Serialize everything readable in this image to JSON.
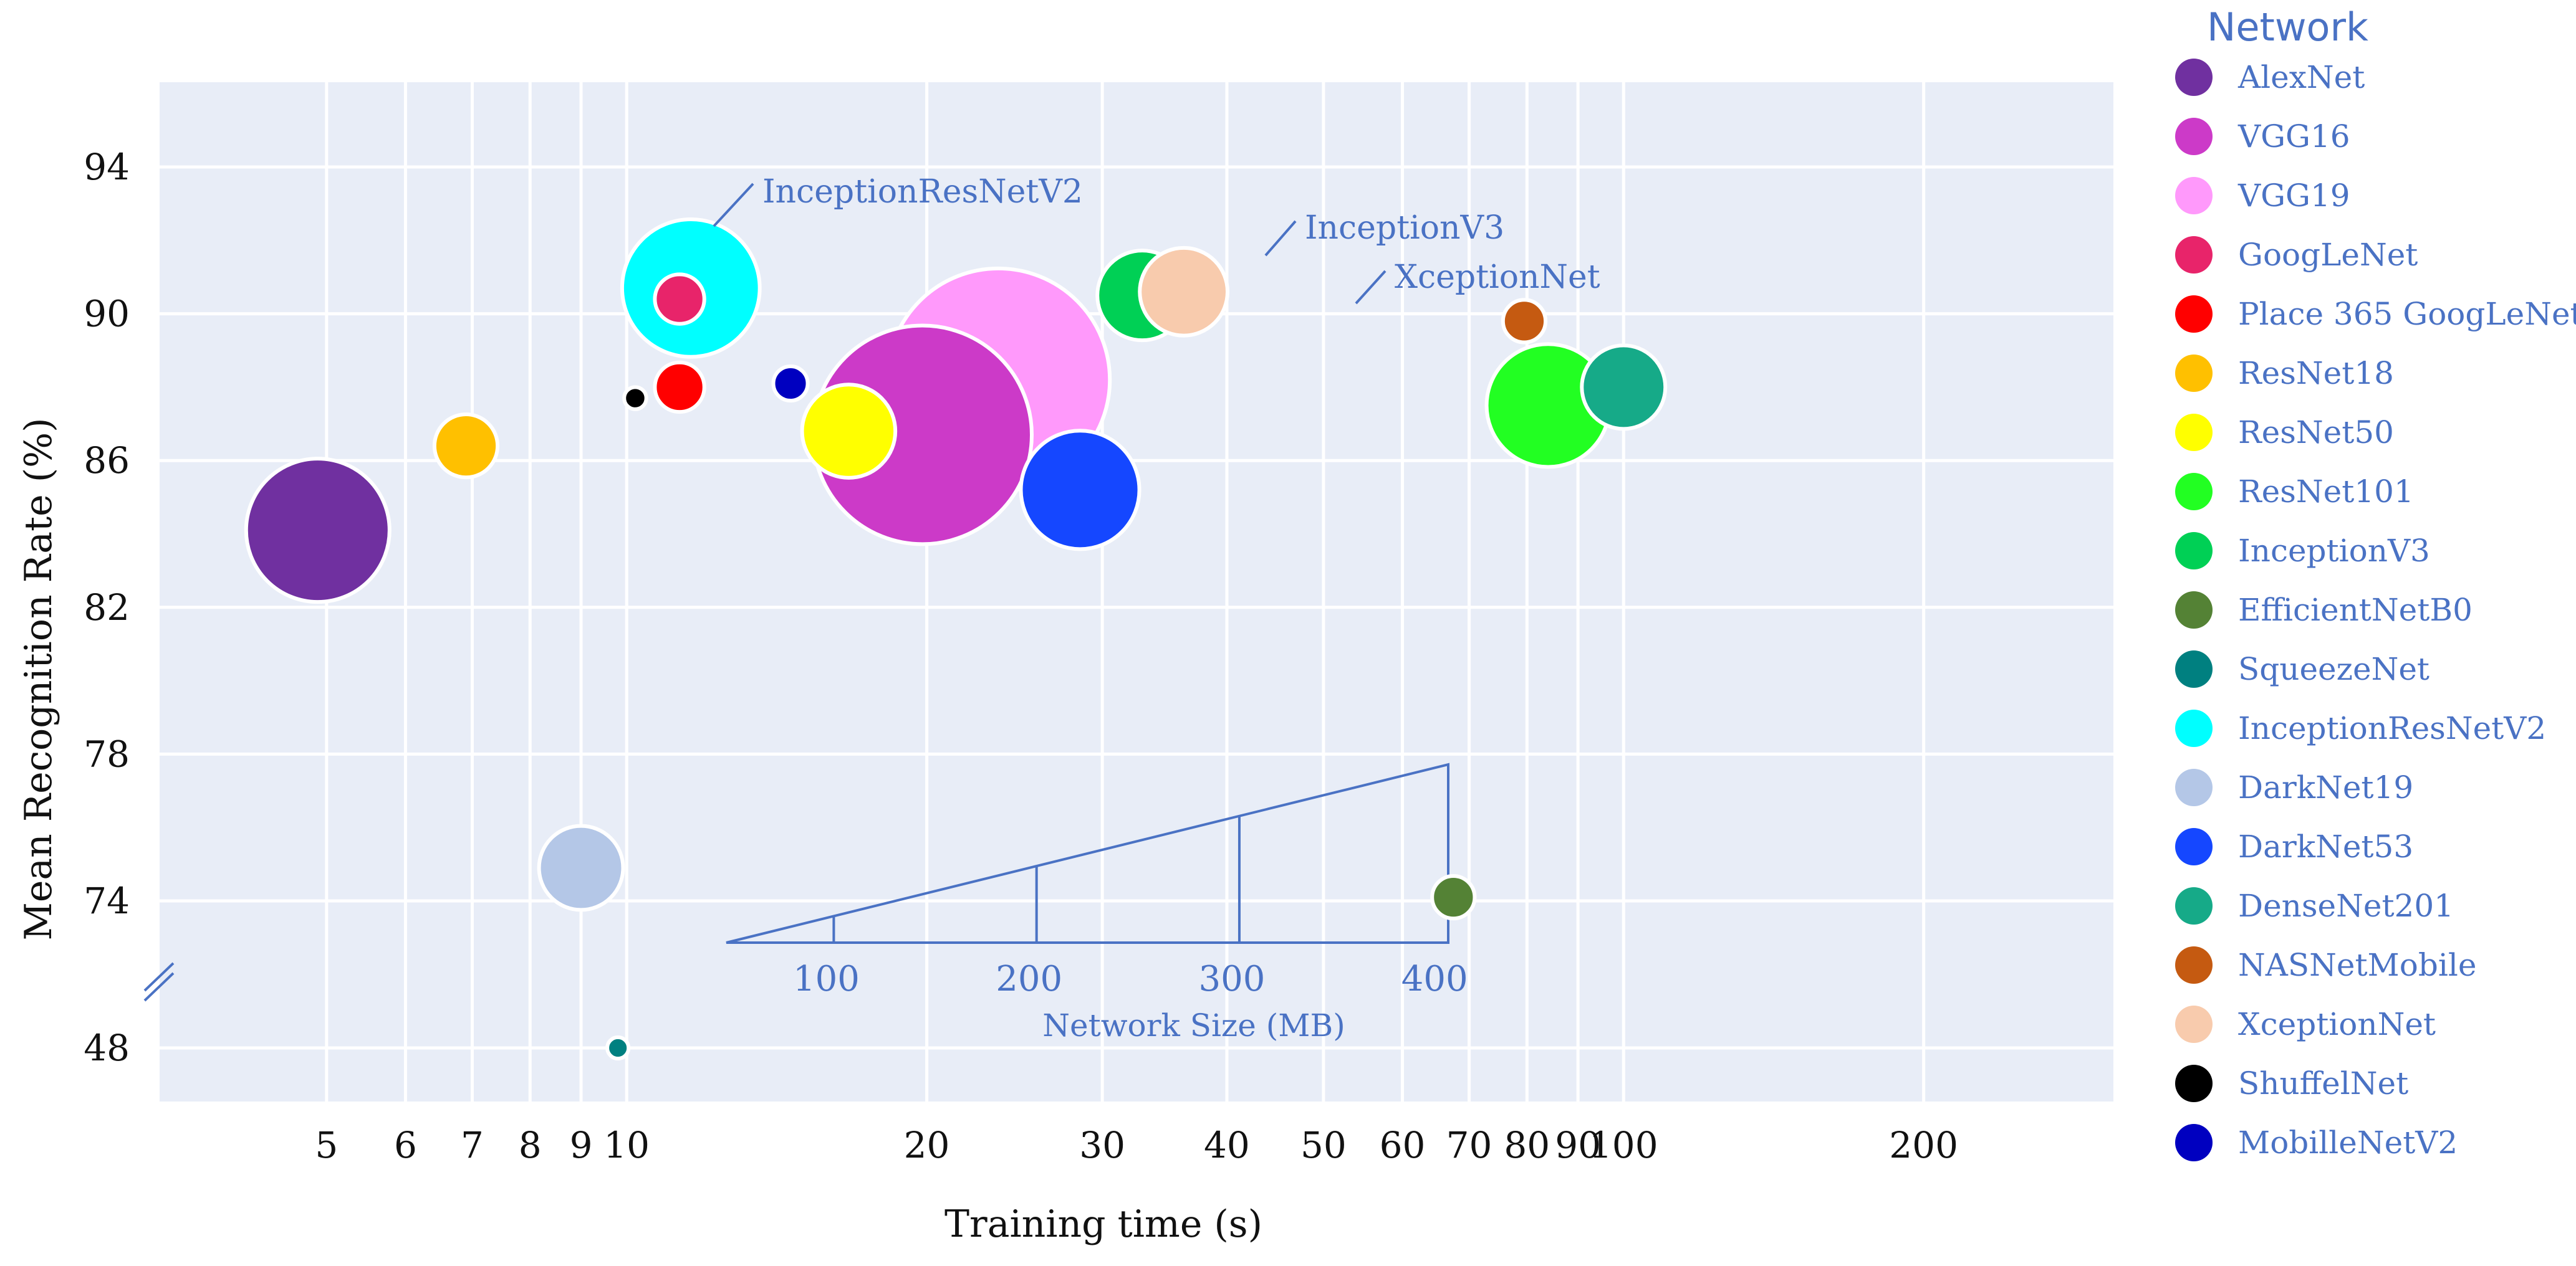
{
  "chart_data": {
    "type": "scatter",
    "subtype": "bubble",
    "xscale": "log",
    "xlabel": "Training time (s)",
    "ylabel": "Mean Recognition Rate (%)",
    "xlim": [
      3.4,
      310
    ],
    "xticks": [
      5,
      6,
      7,
      8,
      9,
      10,
      20,
      30,
      40,
      50,
      60,
      70,
      80,
      90,
      100,
      200
    ],
    "yticks": [
      48,
      74,
      78,
      82,
      86,
      90,
      94
    ],
    "y_axis_break": "between 48 and 74",
    "grid": true,
    "legend_title": "Network",
    "legend_position": "right",
    "series": [
      {
        "name": "AlexNet",
        "color": "#7030a0",
        "x": 4.9,
        "y": 84.1,
        "size": 227
      },
      {
        "name": "VGG16",
        "color": "#cc3ac8",
        "x": 19.8,
        "y": 86.7,
        "size": 528
      },
      {
        "name": "VGG19",
        "color": "#ff99fb",
        "x": 23.6,
        "y": 88.2,
        "size": 548
      },
      {
        "name": "GoogLeNet",
        "color": "#e8246a",
        "x": 11.3,
        "y": 90.4,
        "size": 27
      },
      {
        "name": "Place 365 GoogLeNet",
        "color": "#ff0000",
        "x": 11.3,
        "y": 88.0,
        "size": 27
      },
      {
        "name": "ResNet18",
        "color": "#ffc000",
        "x": 6.9,
        "y": 86.4,
        "size": 44
      },
      {
        "name": "ResNet50",
        "color": "#ffff00",
        "x": 16.7,
        "y": 86.8,
        "size": 96
      },
      {
        "name": "ResNet101",
        "color": "#22ff22",
        "x": 84,
        "y": 87.5,
        "size": 167
      },
      {
        "name": "InceptionV3",
        "color": "#00d055",
        "x": 32.9,
        "y": 90.5,
        "size": 89
      },
      {
        "name": "EfficientNetB0",
        "color": "#548235",
        "x": 67.5,
        "y": 74.1,
        "size": 20
      },
      {
        "name": "SqueezeNet",
        "color": "#008080",
        "x": 9.8,
        "y": 47.8,
        "size": 5
      },
      {
        "name": "InceptionResNetV2",
        "color": "#00ffff",
        "x": 11.6,
        "y": 90.7,
        "size": 209
      },
      {
        "name": "DarkNet19",
        "color": "#b4c7e7",
        "x": 9.0,
        "y": 74.9,
        "size": 78
      },
      {
        "name": "DarkNet53",
        "color": "#1547ff",
        "x": 28.5,
        "y": 85.2,
        "size": 155
      },
      {
        "name": "DenseNet201",
        "color": "#16aa88",
        "x": 100,
        "y": 88.0,
        "size": 77
      },
      {
        "name": "NASNetMobile",
        "color": "#c55a11",
        "x": 79.5,
        "y": 89.8,
        "size": 20
      },
      {
        "name": "XceptionNet",
        "color": "#f8cbad",
        "x": 36.2,
        "y": 90.6,
        "size": 85
      },
      {
        "name": "ShuffelNet",
        "color": "#000000",
        "x": 10.2,
        "y": 87.7,
        "size": 5.4
      },
      {
        "name": "MobilleNetV2",
        "color": "#0000c0",
        "x": 14.6,
        "y": 88.1,
        "size": 13
      }
    ],
    "annotations": [
      "InceptionResNetV2",
      "InceptionV3",
      "XceptionNet"
    ],
    "size_key": {
      "title": "Network Size (MB)",
      "ticks": [
        100,
        200,
        300,
        400
      ]
    }
  }
}
